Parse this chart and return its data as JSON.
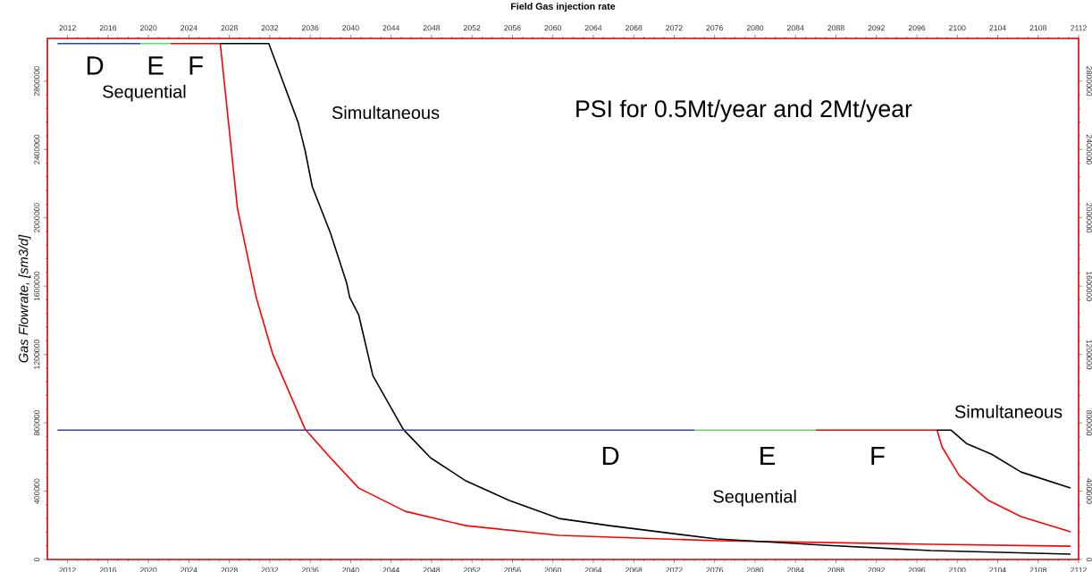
{
  "chart_data": {
    "type": "line",
    "title": "Field Gas injection rate",
    "ylabel": "Gas Flowrate, [sm3/d]",
    "xlim": [
      2010,
      2112
    ],
    "ylim": [
      0,
      3050000
    ],
    "xticks": [
      2012,
      2016,
      2020,
      2024,
      2028,
      2032,
      2036,
      2040,
      2044,
      2048,
      2052,
      2056,
      2060,
      2064,
      2068,
      2072,
      2076,
      2080,
      2084,
      2088,
      2092,
      2096,
      2100,
      2104,
      2108,
      2112
    ],
    "yticks": [
      0,
      400000,
      800000,
      1200000,
      1600000,
      2000000,
      2400000,
      2800000
    ],
    "x2lim": [
      2010,
      2112
    ],
    "y2lim": [
      0,
      3050000
    ],
    "x2ticks": [
      2012,
      2016,
      2020,
      2024,
      2028,
      2032,
      2036,
      2040,
      2044,
      2048,
      2052,
      2056,
      2060,
      2064,
      2068,
      2072,
      2076,
      2080,
      2084,
      2088,
      2092,
      2096,
      2100,
      2104,
      2108,
      2112
    ],
    "y2ticks": [
      0,
      400000,
      800000,
      1200000,
      1600000,
      2000000,
      2400000,
      2800000
    ],
    "line_style": "solid",
    "series": [
      {
        "color": "#3a3ab0",
        "x": [
          2011.0,
          2019.2
        ],
        "values": [
          3020000,
          3020000
        ]
      },
      {
        "color": "#5ee05e",
        "x": [
          2019.2,
          2022.2
        ],
        "values": [
          3020000,
          3020000
        ]
      },
      {
        "color": "#ff0000",
        "x": [
          2022.2,
          2027.1,
          2028.8,
          2030.65,
          2032.3,
          2035.5,
          2038.0,
          2040.8,
          2045.4,
          2051.4,
          2060.6,
          2076.2,
          2097.4,
          2111.2
        ],
        "values": [
          3020000,
          3020000,
          2057000,
          1535000,
          1201000,
          762000,
          595000,
          418000,
          282000,
          198000,
          141000,
          110000,
          89000,
          78000
        ]
      },
      {
        "color": "#000000",
        "x": [
          2027.1,
          2031.9,
          2032.7,
          2034.8,
          2035.5,
          2036.2,
          2038.0,
          2039.6,
          2039.9,
          2040.8,
          2042.2,
          2045.2,
          2047.9,
          2051.4,
          2055.7,
          2060.6,
          2065.6,
          2076.2,
          2086.8,
          2097.4,
          2111.2
        ],
        "values": [
          3020000,
          3020000,
          2893000,
          2559000,
          2392000,
          2183000,
          1911000,
          1619000,
          1535000,
          1431000,
          1076000,
          762000,
          595000,
          460000,
          345000,
          240000,
          198000,
          120000,
          84000,
          52000,
          31000
        ]
      },
      {
        "color": "#3a3ab0",
        "x": [
          2011.0,
          2074.0
        ],
        "values": [
          757000,
          757000
        ]
      },
      {
        "color": "#5ee05e",
        "x": [
          2074.0,
          2086.0
        ],
        "values": [
          757000,
          757000
        ]
      },
      {
        "color": "#ff0000",
        "x": [
          2086.0,
          2098.0,
          2098.5,
          2100.2,
          2103.1,
          2106.3,
          2111.2
        ],
        "values": [
          757000,
          757000,
          658000,
          491000,
          345000,
          251000,
          162000
        ]
      },
      {
        "color": "#000000",
        "x": [
          2098.0,
          2099.4,
          2100.9,
          2103.4,
          2106.3,
          2111.2
        ],
        "values": [
          757000,
          757000,
          679000,
          616000,
          512000,
          418000
        ]
      }
    ],
    "annotations": [
      "D",
      "E",
      "F",
      "Sequential",
      "Simultaneous",
      "PSI for 0.5Mt/year and 2Mt/year",
      "D",
      "E",
      "F",
      "Sequential",
      "Simultaneous"
    ]
  }
}
